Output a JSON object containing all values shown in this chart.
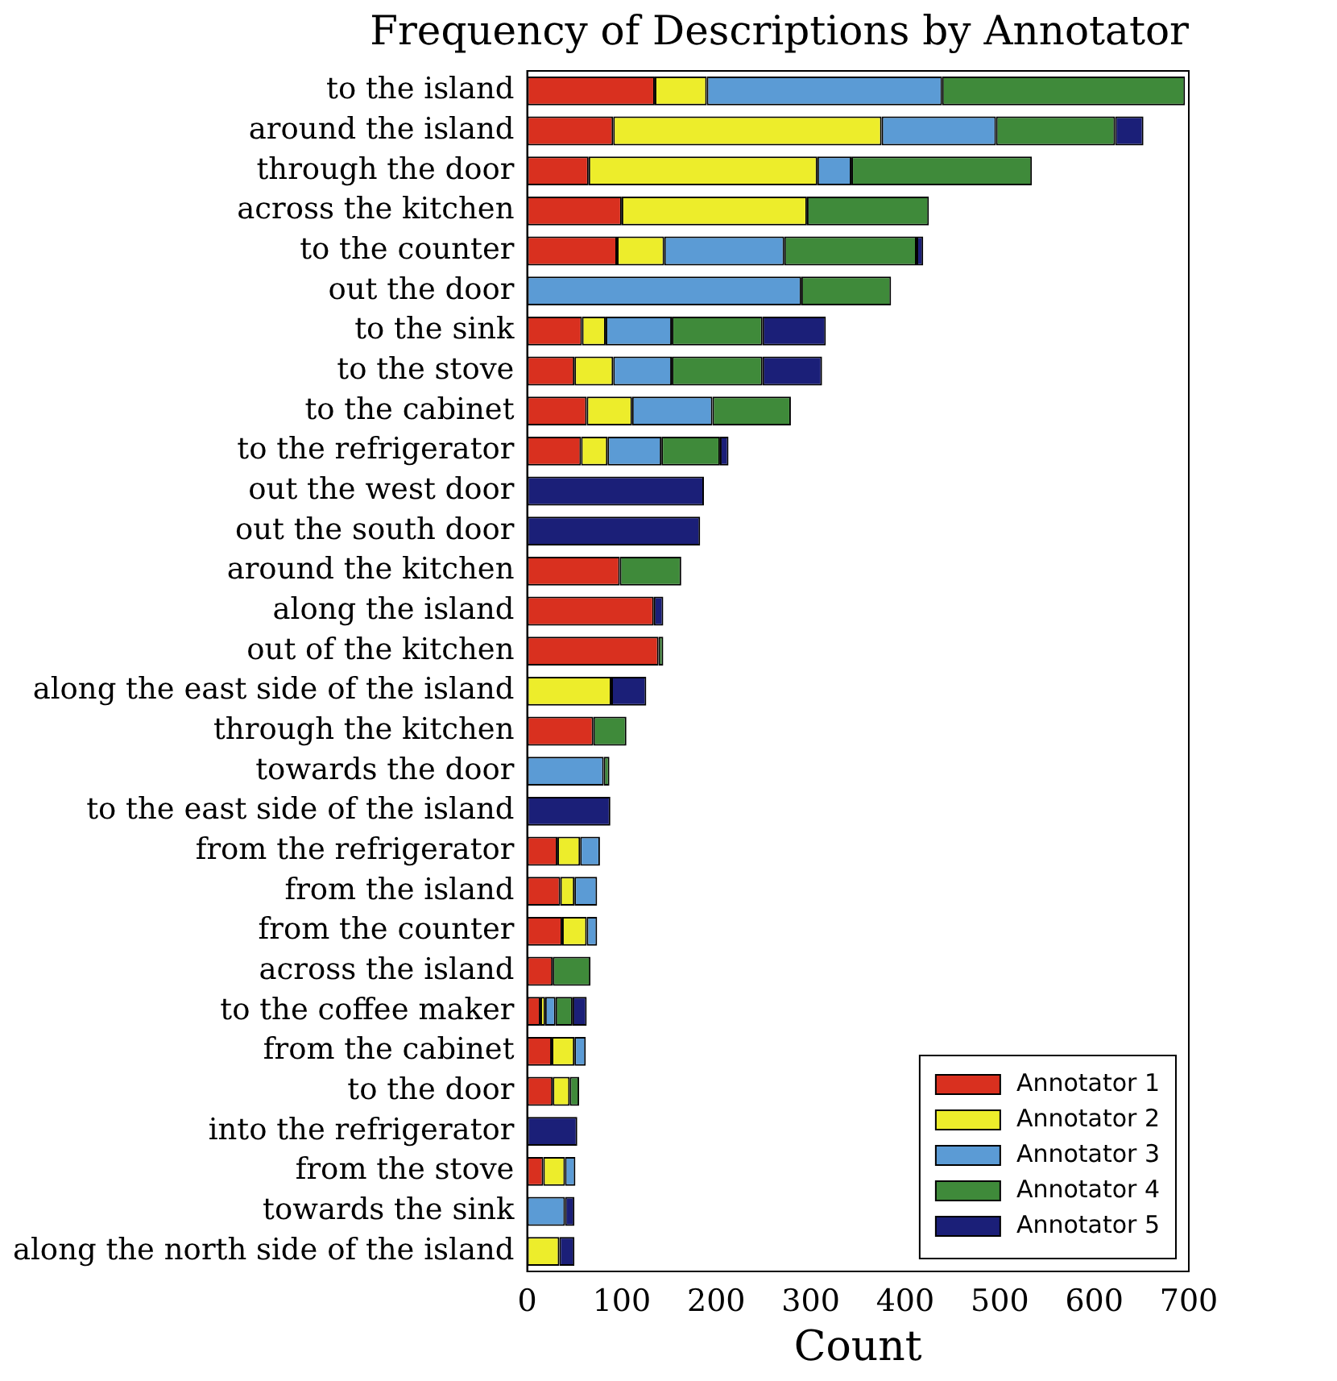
{
  "chart_data": {
    "type": "bar",
    "orientation": "horizontal",
    "stacked": true,
    "title": "Frequency of Descriptions by Annotator",
    "xlabel": "Count",
    "categories": [
      "to the island",
      "around the island",
      "through the door",
      "across the kitchen",
      "to the counter",
      "out the door",
      "to the sink",
      "to the stove",
      "to the cabinet",
      "to the refrigerator",
      "out the west door",
      "out the south door",
      "around the kitchen",
      "along the island",
      "out of the kitchen",
      "along the east side of the island",
      "through the kitchen",
      "towards the door",
      "to the east side of the island",
      "from the refrigerator",
      "from the island",
      "from the counter",
      "across the island",
      "to the coffee maker",
      "from the cabinet",
      "to the door",
      "into the refrigerator",
      "from the stove",
      "towards the sink",
      "along the north side of the island"
    ],
    "series": [
      {
        "name": "Annotator 1",
        "color": "#d9301f",
        "values": [
          135,
          91,
          65,
          100,
          95,
          0,
          58,
          50,
          63,
          57,
          0,
          0,
          98,
          134,
          139,
          0,
          70,
          0,
          0,
          32,
          35,
          37,
          27,
          14,
          26,
          27,
          0,
          17,
          0,
          0
        ]
      },
      {
        "name": "Annotator 2",
        "color": "#eded2b",
        "values": [
          55,
          284,
          242,
          196,
          50,
          0,
          25,
          41,
          48,
          28,
          0,
          0,
          0,
          0,
          0,
          89,
          0,
          0,
          0,
          24,
          15,
          26,
          0,
          5,
          24,
          18,
          0,
          23,
          0,
          34
        ]
      },
      {
        "name": "Annotator 3",
        "color": "#5b9bd5",
        "values": [
          249,
          121,
          36,
          0,
          127,
          290,
          70,
          62,
          85,
          57,
          0,
          0,
          0,
          0,
          0,
          0,
          0,
          81,
          0,
          21,
          24,
          11,
          0,
          11,
          12,
          0,
          0,
          11,
          40,
          0
        ]
      },
      {
        "name": "Annotator 4",
        "color": "#3f8a3a",
        "values": [
          257,
          126,
          191,
          129,
          140,
          95,
          96,
          96,
          83,
          62,
          0,
          0,
          65,
          0,
          5,
          0,
          35,
          6,
          0,
          0,
          0,
          0,
          40,
          18,
          0,
          10,
          0,
          0,
          0,
          0
        ]
      },
      {
        "name": "Annotator 5",
        "color": "#1b1f78",
        "values": [
          0,
          30,
          0,
          0,
          7,
          0,
          67,
          63,
          0,
          9,
          187,
          183,
          0,
          10,
          0,
          37,
          0,
          0,
          88,
          0,
          0,
          0,
          0,
          15,
          0,
          0,
          53,
          0,
          10,
          16
        ]
      }
    ],
    "xlim": [
      0,
      700
    ],
    "xticks": [
      0,
      100,
      200,
      300,
      400,
      500,
      600,
      700
    ],
    "grid": false,
    "legend": "bottom right"
  }
}
